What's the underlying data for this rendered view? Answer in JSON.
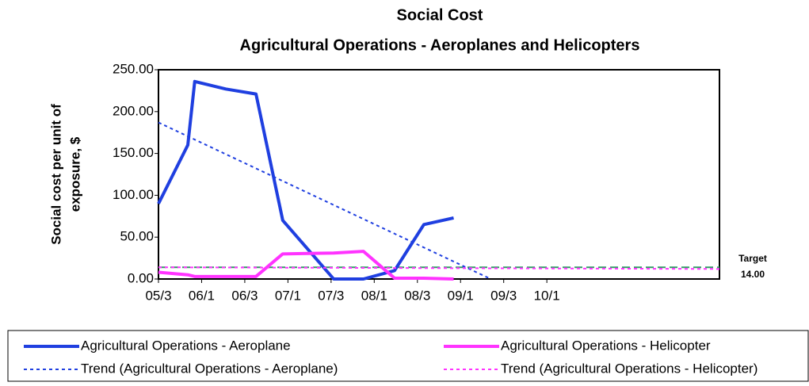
{
  "chart_data": {
    "type": "line",
    "title": [
      "Social Cost",
      "Agricultural Operations - Aeroplanes and Helicopters"
    ],
    "ylabel": [
      "Social cost per unit of",
      "exposure, $"
    ],
    "xlim": [
      0,
      13
    ],
    "ylim": [
      0,
      250
    ],
    "xticks": [
      {
        "value": 0,
        "label": "05/3"
      },
      {
        "value": 1,
        "label": "06/1"
      },
      {
        "value": 2,
        "label": "06/3"
      },
      {
        "value": 3,
        "label": "07/1"
      },
      {
        "value": 4,
        "label": "07/3"
      },
      {
        "value": 5,
        "label": "08/1"
      },
      {
        "value": 6,
        "label": "08/3"
      },
      {
        "value": 7,
        "label": "09/1"
      },
      {
        "value": 8,
        "label": "09/3"
      },
      {
        "value": 9,
        "label": "10/1"
      }
    ],
    "yticks": [
      {
        "value": 0,
        "label": "0.00"
      },
      {
        "value": 50,
        "label": "50.00"
      },
      {
        "value": 100,
        "label": "100.00"
      },
      {
        "value": 150,
        "label": "150.00"
      },
      {
        "value": 200,
        "label": "200.00"
      },
      {
        "value": 250,
        "label": "250.00"
      }
    ],
    "series": [
      {
        "name": "Agricultural Operations - Aeroplane",
        "color": "#1f3fe0",
        "style": "solid",
        "x": [
          0,
          0.68,
          0.84,
          1.56,
          2.26,
          2.88,
          4.06,
          4.75,
          5.47,
          6.15,
          6.84
        ],
        "values": [
          90,
          160,
          236,
          227,
          221,
          70,
          0,
          0,
          10,
          65,
          73
        ]
      },
      {
        "name": "Agricultural Operations - Helicopter",
        "color": "#ff33ff",
        "style": "solid",
        "x": [
          0,
          0.68,
          0.84,
          1.56,
          2.26,
          2.88,
          4.06,
          4.75,
          5.47,
          6.15,
          6.84
        ],
        "values": [
          8,
          5,
          3,
          3,
          3,
          30,
          31,
          33,
          1,
          1,
          0
        ]
      },
      {
        "name": "Trend (Agricultural Operations - Aeroplane)",
        "color": "#1f3fe0",
        "style": "dotted",
        "x": [
          0,
          7.7
        ],
        "values": [
          187,
          0
        ]
      },
      {
        "name": "Trend (Agricultural Operations - Helicopter)",
        "color": "#ff33ff",
        "style": "dotted",
        "x": [
          0,
          13
        ],
        "values": [
          14,
          12
        ]
      }
    ],
    "target": {
      "label": "Target",
      "value": 14,
      "value_label": "14.00",
      "color": "#339966"
    }
  }
}
